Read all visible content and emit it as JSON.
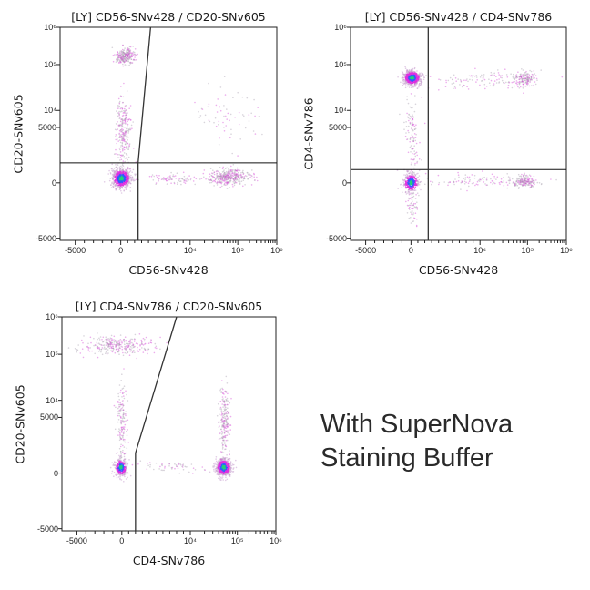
{
  "caption": {
    "line1": "With SuperNova",
    "line2": "Staining Buffer"
  },
  "chart_data": [
    {
      "type": "scatter",
      "title": "[LY] CD56-SNv428 / CD20-SNv605",
      "xlabel": "CD56-SNv428",
      "ylabel": "CD20-SNv605",
      "x_ticks": [
        {
          "v": -5000,
          "label": "-5000"
        },
        {
          "v": 0,
          "label": "0"
        },
        {
          "v": 10000,
          "label": "10⁴"
        },
        {
          "v": 100000,
          "label": "10⁵"
        },
        {
          "v": 1000000,
          "label": "10⁶"
        }
      ],
      "y_ticks": [
        {
          "v": 1000000,
          "label": "10⁶"
        },
        {
          "v": 100000,
          "label": "10⁵"
        },
        {
          "v": 10000,
          "label": "10⁴"
        },
        {
          "v": 5000,
          "label": "5000"
        },
        {
          "v": 0,
          "label": "0"
        },
        {
          "v": -5000,
          "label": "-5000"
        }
      ],
      "xlim": [
        -5000,
        1000000
      ],
      "ylim": [
        -5000,
        1000000
      ],
      "gates": {
        "horizontal_y": 1800,
        "vertical_x": 2500,
        "slant_top_x": 4300
      },
      "populations": [
        {
          "x": [
            -1000,
            1500
          ],
          "y": [
            -500,
            1300
          ],
          "n": 700,
          "hot": true
        },
        {
          "x": [
            -600,
            2000
          ],
          "y": [
            100000,
            280000
          ],
          "n": 260,
          "hot": false
        },
        {
          "x": [
            -500,
            1500
          ],
          "y": [
            1500,
            20000
          ],
          "n": 260,
          "hot": false
        },
        {
          "x": [
            25000,
            180000
          ],
          "y": [
            -200,
            1200
          ],
          "n": 380,
          "hot": false
        },
        {
          "x": [
            2500,
            25000
          ],
          "y": [
            -100,
            900
          ],
          "n": 90,
          "hot": false
        },
        {
          "x": [
            10000,
            500000
          ],
          "y": [
            3000,
            40000
          ],
          "n": 70,
          "hot": false
        }
      ]
    },
    {
      "type": "scatter",
      "title": "[LY] CD56-SNv428 / CD4-SNv786",
      "xlabel": "CD56-SNv428",
      "ylabel": "CD4-SNv786",
      "x_ticks": [
        {
          "v": -5000,
          "label": "-5000"
        },
        {
          "v": 0,
          "label": "0"
        },
        {
          "v": 10000,
          "label": "10⁴"
        },
        {
          "v": 100000,
          "label": "10⁵"
        },
        {
          "v": 1000000,
          "label": "10⁶"
        }
      ],
      "y_ticks": [
        {
          "v": 1000000,
          "label": "10⁶"
        },
        {
          "v": 100000,
          "label": "10⁵"
        },
        {
          "v": 10000,
          "label": "10⁴"
        },
        {
          "v": 5000,
          "label": "5000"
        },
        {
          "v": 0,
          "label": "0"
        },
        {
          "v": -5000,
          "label": "-5000"
        }
      ],
      "xlim": [
        -5000,
        1000000
      ],
      "ylim": [
        -5000,
        1000000
      ],
      "gates": {
        "horizontal_y": 1200,
        "vertical_x": 2500
      },
      "populations": [
        {
          "x": [
            -900,
            1500
          ],
          "y": [
            35000,
            75000
          ],
          "n": 650,
          "hot": true
        },
        {
          "x": [
            -900,
            1200
          ],
          "y": [
            -900,
            900
          ],
          "n": 350,
          "hot": true
        },
        {
          "x": [
            -600,
            1200
          ],
          "y": [
            900,
            30000
          ],
          "n": 120,
          "hot": false
        },
        {
          "x": [
            -600,
            1200
          ],
          "y": [
            -4000,
            -900
          ],
          "n": 60,
          "hot": false
        },
        {
          "x": [
            2500,
            150000
          ],
          "y": [
            30000,
            70000
          ],
          "n": 120,
          "hot": false
        },
        {
          "x": [
            50000,
            160000
          ],
          "y": [
            35000,
            70000
          ],
          "n": 160,
          "hot": false
        },
        {
          "x": [
            2500,
            150000
          ],
          "y": [
            -500,
            800
          ],
          "n": 120,
          "hot": false
        },
        {
          "x": [
            50000,
            160000
          ],
          "y": [
            -400,
            700
          ],
          "n": 170,
          "hot": false
        }
      ]
    },
    {
      "type": "scatter",
      "title": "[LY] CD4-SNv786 / CD20-SNv605",
      "xlabel": "CD4-SNv786",
      "ylabel": "CD20-SNv605",
      "x_ticks": [
        {
          "v": -5000,
          "label": "-5000"
        },
        {
          "v": 0,
          "label": "0"
        },
        {
          "v": 10000,
          "label": "10⁴"
        },
        {
          "v": 100000,
          "label": "10⁵"
        },
        {
          "v": 1000000,
          "label": "10⁶"
        }
      ],
      "y_ticks": [
        {
          "v": 1000000,
          "label": "10⁶"
        },
        {
          "v": 100000,
          "label": "10⁵"
        },
        {
          "v": 10000,
          "label": "10⁴"
        },
        {
          "v": 5000,
          "label": "5000"
        },
        {
          "v": 0,
          "label": "0"
        },
        {
          "v": -5000,
          "label": "-5000"
        }
      ],
      "xlim": [
        -5000,
        1000000
      ],
      "ylim": [
        -5000,
        1000000
      ],
      "gates": {
        "horizontal_y": 1800,
        "vertical_x": 2000,
        "slant_top_x": 8000
      },
      "populations": [
        {
          "x": [
            -4500,
            4500
          ],
          "y": [
            100000,
            300000
          ],
          "n": 300,
          "hot": false
        },
        {
          "x": [
            -600,
            800
          ],
          "y": [
            1500,
            20000
          ],
          "n": 160,
          "hot": false
        },
        {
          "x": [
            -800,
            800
          ],
          "y": [
            -300,
            1300
          ],
          "n": 300,
          "hot": true
        },
        {
          "x": [
            35000,
            75000
          ],
          "y": [
            -300,
            1300
          ],
          "n": 600,
          "hot": true
        },
        {
          "x": [
            40000,
            70000
          ],
          "y": [
            1500,
            20000
          ],
          "n": 220,
          "hot": false
        },
        {
          "x": [
            2500,
            30000
          ],
          "y": [
            0,
            1000
          ],
          "n": 60,
          "hot": false
        }
      ]
    }
  ]
}
